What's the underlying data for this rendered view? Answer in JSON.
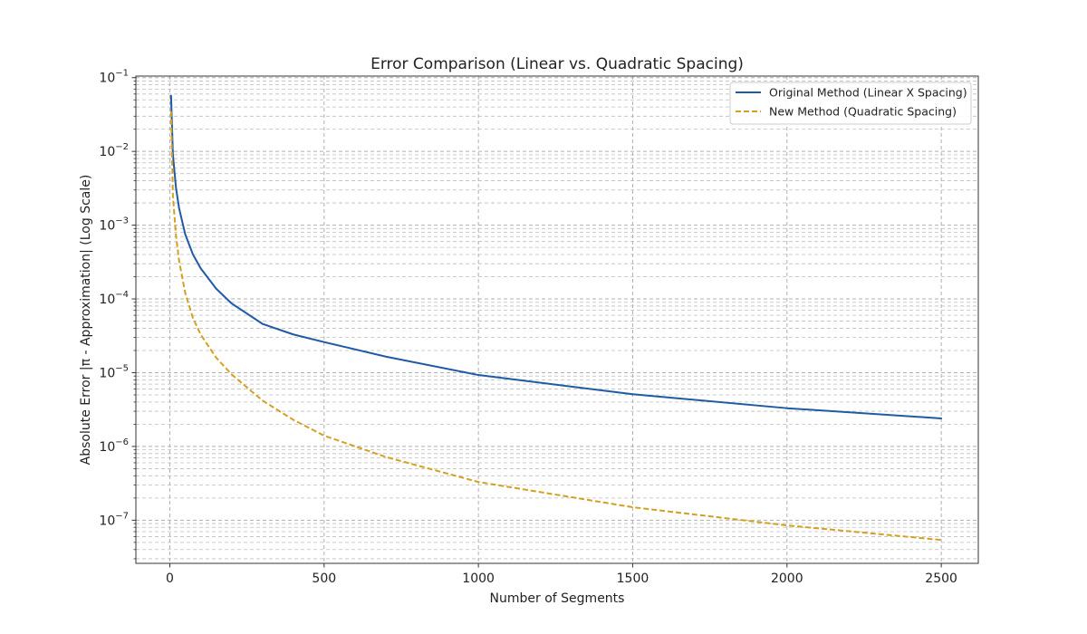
{
  "chart_data": {
    "type": "line",
    "title": "Error Comparison (Linear vs. Quadratic Spacing)",
    "xlabel": "Number of Segments",
    "ylabel": "Absolute Error |π - Approximation| (Log Scale)",
    "xlim": [
      -110,
      2620
    ],
    "ylim": [
      2.6e-08,
      0.105
    ],
    "yscale": "log",
    "grid": true,
    "legend_position": "upper right",
    "x_ticks": [
      {
        "value": 0,
        "label": "0"
      },
      {
        "value": 500,
        "label": "500"
      },
      {
        "value": 1000,
        "label": "1000"
      },
      {
        "value": 1500,
        "label": "1500"
      },
      {
        "value": 2000,
        "label": "2000"
      },
      {
        "value": 2500,
        "label": "2500"
      }
    ],
    "y_ticks": [
      {
        "value": 0.1,
        "base": "10",
        "exp": "−1"
      },
      {
        "value": 0.01,
        "base": "10",
        "exp": "−2"
      },
      {
        "value": 0.001,
        "base": "10",
        "exp": "−3"
      },
      {
        "value": 0.0001,
        "base": "10",
        "exp": "−4"
      },
      {
        "value": 1e-05,
        "base": "10",
        "exp": "−5"
      },
      {
        "value": 1e-06,
        "base": "10",
        "exp": "−6"
      },
      {
        "value": 1e-07,
        "base": "10",
        "exp": "−7"
      }
    ],
    "series": [
      {
        "name": "Original Method (Linear X Spacing)",
        "color": "#1f5aa6",
        "style": "solid",
        "x": [
          4,
          10,
          20,
          30,
          50,
          75,
          100,
          150,
          200,
          300,
          400,
          500,
          700,
          1000,
          1500,
          2000,
          2500
        ],
        "y": [
          0.057,
          0.009,
          0.0032,
          0.0017,
          0.00075,
          0.0004,
          0.00026,
          0.000138,
          8.7e-05,
          4.6e-05,
          3.3e-05,
          2.6e-05,
          1.65e-05,
          9.3e-06,
          5.1e-06,
          3.3e-06,
          2.4e-06
        ]
      },
      {
        "name": "New Method (Quadratic Spacing)",
        "color": "#d4a020",
        "style": "dashed",
        "x": [
          4,
          10,
          20,
          30,
          50,
          75,
          100,
          150,
          200,
          300,
          400,
          500,
          700,
          1000,
          1500,
          2000,
          2500
        ],
        "y": [
          0.035,
          0.0025,
          0.00072,
          0.00033,
          0.00012,
          5.5e-05,
          3.3e-05,
          1.6e-05,
          9.5e-06,
          4.2e-06,
          2.3e-06,
          1.4e-06,
          7.2e-07,
          3.3e-07,
          1.5e-07,
          8.5e-08,
          5.4e-08
        ]
      }
    ]
  }
}
